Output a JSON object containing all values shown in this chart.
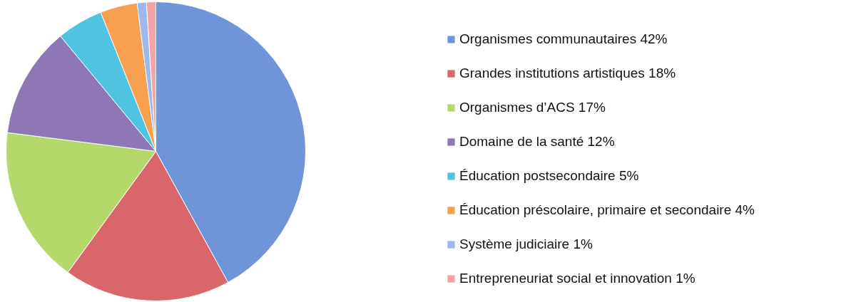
{
  "chart_data": {
    "type": "pie",
    "categories": [
      "Organismes communautaires 42%",
      "Grandes institutions artistiques 18%",
      "Organismes d’ACS 17%",
      "Domaine de la santé 12%",
      "Éducation postsecondaire 5%",
      "Éducation préscolaire, primaire et secondaire 4%",
      "Système judiciaire 1%",
      "Entrepreneuriat social et innovation 1%"
    ],
    "values": [
      42,
      18,
      17,
      12,
      5,
      4,
      1,
      1
    ],
    "colors": [
      "#6f95d8",
      "#d9666a",
      "#b5d86a",
      "#8f77b5",
      "#4fc3e0",
      "#f7a04f",
      "#9db8ec",
      "#f4a3a8"
    ],
    "legend": "right"
  }
}
